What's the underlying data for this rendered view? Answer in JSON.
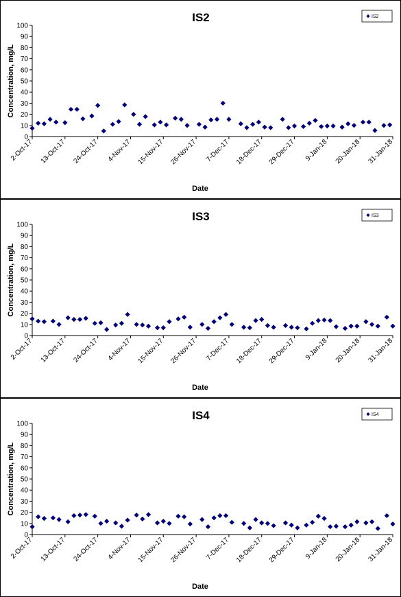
{
  "chart_data": [
    {
      "type": "scatter",
      "title": "IS2",
      "xlabel": "Date",
      "ylabel": "Concentration, mg/L",
      "ylim": [
        0,
        100
      ],
      "yticks": [
        0,
        10,
        20,
        30,
        40,
        50,
        60,
        70,
        80,
        90,
        100
      ],
      "xlim": [
        "2017-10-02",
        "2018-01-31"
      ],
      "xtick_labels": [
        "2-Oct-17",
        "13-Oct-17",
        "24-Oct-17",
        "4-Nov-17",
        "15-Nov-17",
        "26-Nov-17",
        "7-Dec-17",
        "18-Dec-17",
        "29-Dec-17",
        "9-Jan-18",
        "20-Jan-18",
        "31-Jan-18"
      ],
      "legend_position": "top-right",
      "series": [
        {
          "name": "IS2",
          "color": "#000080",
          "marker": "diamond",
          "points": [
            [
              "2017-10-02",
              7.5
            ],
            [
              "2017-10-04",
              12
            ],
            [
              "2017-10-06",
              11.5
            ],
            [
              "2017-10-08",
              15.5
            ],
            [
              "2017-10-10",
              13
            ],
            [
              "2017-10-13",
              12.5
            ],
            [
              "2017-10-15",
              24.5
            ],
            [
              "2017-10-17",
              24.5
            ],
            [
              "2017-10-19",
              16
            ],
            [
              "2017-10-22",
              18.5
            ],
            [
              "2017-10-24",
              28
            ],
            [
              "2017-10-26",
              5
            ],
            [
              "2017-10-29",
              11
            ],
            [
              "2017-10-31",
              13.5
            ],
            [
              "2017-11-02",
              28.5
            ],
            [
              "2017-11-05",
              20
            ],
            [
              "2017-11-07",
              11
            ],
            [
              "2017-11-09",
              18
            ],
            [
              "2017-11-12",
              10.5
            ],
            [
              "2017-11-14",
              13
            ],
            [
              "2017-11-16",
              10.5
            ],
            [
              "2017-11-19",
              16.5
            ],
            [
              "2017-11-21",
              15.5
            ],
            [
              "2017-11-23",
              10
            ],
            [
              "2017-11-27",
              11
            ],
            [
              "2017-11-29",
              8.5
            ],
            [
              "2017-12-01",
              15
            ],
            [
              "2017-12-03",
              15.5
            ],
            [
              "2017-12-05",
              30
            ],
            [
              "2017-12-07",
              15.5
            ],
            [
              "2017-12-11",
              11.5
            ],
            [
              "2017-12-13",
              8
            ],
            [
              "2017-12-15",
              11
            ],
            [
              "2017-12-17",
              13
            ],
            [
              "2017-12-19",
              8.5
            ],
            [
              "2017-12-21",
              8
            ],
            [
              "2017-12-25",
              15.5
            ],
            [
              "2017-12-27",
              8
            ],
            [
              "2017-12-29",
              9.5
            ],
            [
              "2018-01-01",
              9
            ],
            [
              "2018-01-03",
              12
            ],
            [
              "2018-01-05",
              14.5
            ],
            [
              "2018-01-07",
              9
            ],
            [
              "2018-01-09",
              9.5
            ],
            [
              "2018-01-11",
              9.5
            ],
            [
              "2018-01-14",
              8.5
            ],
            [
              "2018-01-16",
              11.5
            ],
            [
              "2018-01-18",
              10
            ],
            [
              "2018-01-21",
              13
            ],
            [
              "2018-01-23",
              13
            ],
            [
              "2018-01-25",
              5.5
            ],
            [
              "2018-01-28",
              10
            ],
            [
              "2018-01-30",
              10.5
            ]
          ]
        }
      ]
    },
    {
      "type": "scatter",
      "title": "IS3",
      "xlabel": "Date",
      "ylabel": "Concentration, mg/L",
      "ylim": [
        0,
        100
      ],
      "yticks": [
        0,
        10,
        20,
        30,
        40,
        50,
        60,
        70,
        80,
        90,
        100
      ],
      "xlim": [
        "2017-10-02",
        "2018-01-31"
      ],
      "xtick_labels": [
        "2-Oct-17",
        "13-Oct-17",
        "24-Oct-17",
        "4-Nov-17",
        "15-Nov-17",
        "26-Nov-17",
        "7-Dec-17",
        "18-Dec-17",
        "29-Dec-17",
        "9-Jan-18",
        "20-Jan-18",
        "31-Jan-18"
      ],
      "legend_position": "top-right",
      "series": [
        {
          "name": "IS3",
          "color": "#000080",
          "marker": "diamond",
          "points": [
            [
              "2017-10-02",
              15
            ],
            [
              "2017-10-04",
              13
            ],
            [
              "2017-10-06",
              12.5
            ],
            [
              "2017-10-09",
              13
            ],
            [
              "2017-10-11",
              10
            ],
            [
              "2017-10-14",
              16
            ],
            [
              "2017-10-16",
              14.5
            ],
            [
              "2017-10-18",
              14.5
            ],
            [
              "2017-10-20",
              15.5
            ],
            [
              "2017-10-23",
              11
            ],
            [
              "2017-10-25",
              11.5
            ],
            [
              "2017-10-27",
              5.5
            ],
            [
              "2017-10-30",
              9.5
            ],
            [
              "2017-11-01",
              11
            ],
            [
              "2017-11-03",
              19
            ],
            [
              "2017-11-06",
              10
            ],
            [
              "2017-11-08",
              9.5
            ],
            [
              "2017-11-10",
              8.5
            ],
            [
              "2017-11-13",
              7
            ],
            [
              "2017-11-15",
              7
            ],
            [
              "2017-11-17",
              12.5
            ],
            [
              "2017-11-20",
              15
            ],
            [
              "2017-11-22",
              16.5
            ],
            [
              "2017-11-24",
              7.5
            ],
            [
              "2017-11-28",
              10
            ],
            [
              "2017-11-30",
              6.5
            ],
            [
              "2017-12-02",
              12.5
            ],
            [
              "2017-12-04",
              16
            ],
            [
              "2017-12-06",
              19
            ],
            [
              "2017-12-08",
              10
            ],
            [
              "2017-12-12",
              7.5
            ],
            [
              "2017-12-14",
              7
            ],
            [
              "2017-12-16",
              13.5
            ],
            [
              "2017-12-18",
              14.5
            ],
            [
              "2017-12-20",
              9
            ],
            [
              "2017-12-22",
              7.5
            ],
            [
              "2017-12-26",
              9
            ],
            [
              "2017-12-28",
              7.5
            ],
            [
              "2017-12-30",
              7
            ],
            [
              "2018-01-02",
              6
            ],
            [
              "2018-01-04",
              11
            ],
            [
              "2018-01-06",
              13.5
            ],
            [
              "2018-01-08",
              14
            ],
            [
              "2018-01-10",
              13.5
            ],
            [
              "2018-01-12",
              8
            ],
            [
              "2018-01-15",
              6.5
            ],
            [
              "2018-01-17",
              8.5
            ],
            [
              "2018-01-19",
              8.5
            ],
            [
              "2018-01-22",
              12.5
            ],
            [
              "2018-01-24",
              10
            ],
            [
              "2018-01-26",
              8.5
            ],
            [
              "2018-01-29",
              16.5
            ],
            [
              "2018-01-31",
              8.5
            ]
          ]
        }
      ]
    },
    {
      "type": "scatter",
      "title": "IS4",
      "xlabel": "Date",
      "ylabel": "Concentration, mg/L",
      "ylim": [
        0,
        100
      ],
      "yticks": [
        0,
        10,
        20,
        30,
        40,
        50,
        60,
        70,
        80,
        90,
        100
      ],
      "xlim": [
        "2017-10-02",
        "2018-01-31"
      ],
      "xtick_labels": [
        "2-Oct-17",
        "13-Oct-17",
        "24-Oct-17",
        "4-Nov-17",
        "15-Nov-17",
        "26-Nov-17",
        "7-Dec-17",
        "18-Dec-17",
        "29-Dec-17",
        "9-Jan-18",
        "20-Jan-18",
        "31-Jan-18"
      ],
      "legend_position": "top-right",
      "series": [
        {
          "name": "IS4",
          "color": "#000080",
          "marker": "diamond",
          "points": [
            [
              "2017-10-02",
              7
            ],
            [
              "2017-10-04",
              16
            ],
            [
              "2017-10-06",
              14.5
            ],
            [
              "2017-10-09",
              15
            ],
            [
              "2017-10-11",
              13.5
            ],
            [
              "2017-10-14",
              11.5
            ],
            [
              "2017-10-16",
              17
            ],
            [
              "2017-10-18",
              17.5
            ],
            [
              "2017-10-20",
              18
            ],
            [
              "2017-10-23",
              16.5
            ],
            [
              "2017-10-25",
              10
            ],
            [
              "2017-10-27",
              12
            ],
            [
              "2017-10-30",
              10.5
            ],
            [
              "2017-11-01",
              7.5
            ],
            [
              "2017-11-03",
              13
            ],
            [
              "2017-11-06",
              17.5
            ],
            [
              "2017-11-08",
              14
            ],
            [
              "2017-11-10",
              18
            ],
            [
              "2017-11-13",
              10.5
            ],
            [
              "2017-11-15",
              12
            ],
            [
              "2017-11-17",
              10
            ],
            [
              "2017-11-20",
              16.5
            ],
            [
              "2017-11-22",
              16
            ],
            [
              "2017-11-24",
              9.5
            ],
            [
              "2017-11-28",
              13.5
            ],
            [
              "2017-11-30",
              7
            ],
            [
              "2017-12-02",
              15
            ],
            [
              "2017-12-04",
              17
            ],
            [
              "2017-12-06",
              17
            ],
            [
              "2017-12-08",
              11
            ],
            [
              "2017-12-12",
              10
            ],
            [
              "2017-12-14",
              6
            ],
            [
              "2017-12-16",
              13.5
            ],
            [
              "2017-12-18",
              10.5
            ],
            [
              "2017-12-20",
              10
            ],
            [
              "2017-12-22",
              8
            ],
            [
              "2017-12-26",
              10.5
            ],
            [
              "2017-12-28",
              8.5
            ],
            [
              "2017-12-30",
              6
            ],
            [
              "2018-01-02",
              8.5
            ],
            [
              "2018-01-04",
              11
            ],
            [
              "2018-01-06",
              16.5
            ],
            [
              "2018-01-08",
              14.5
            ],
            [
              "2018-01-10",
              7
            ],
            [
              "2018-01-12",
              7.5
            ],
            [
              "2018-01-15",
              7
            ],
            [
              "2018-01-17",
              8.5
            ],
            [
              "2018-01-19",
              11.5
            ],
            [
              "2018-01-22",
              10.5
            ],
            [
              "2018-01-24",
              11.5
            ],
            [
              "2018-01-26",
              5.5
            ],
            [
              "2018-01-29",
              17
            ],
            [
              "2018-01-31",
              9.5
            ]
          ]
        }
      ]
    }
  ]
}
